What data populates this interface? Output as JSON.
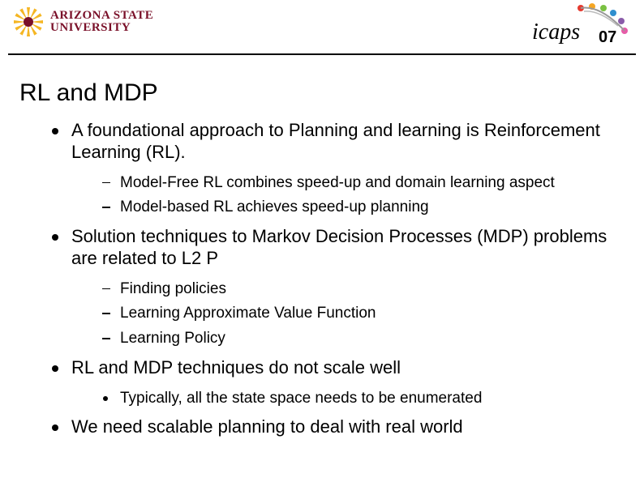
{
  "logos": {
    "asu": {
      "line1": "ARIZONA STATE",
      "line2": "UNIVERSITY",
      "text_color": "#7a1029",
      "sunburst_color": "#f5b623"
    },
    "icaps": {
      "text": "icaps07",
      "dot_colors": [
        "#e53a2f",
        "#f5a623",
        "#7ac142",
        "#2f8fce",
        "#8a5ca9",
        "#e75ba8"
      ]
    }
  },
  "title": "RL and MDP",
  "title_fontsize": 30,
  "body_fontsize": 22,
  "sub_fontsize": 19,
  "colors": {
    "background": "#ffffff",
    "text": "#000000",
    "rule": "#000000"
  },
  "bullets": [
    {
      "text": "A foundational approach to Planning and learning is Reinforcement Learning (RL).",
      "sub_style": "dash",
      "subs": [
        "Model-Free RL combines speed-up and domain learning aspect",
        "Model-based RL achieves speed-up planning"
      ]
    },
    {
      "text": "Solution techniques to Markov Decision Processes (MDP) problems are related to L2 P",
      "sub_style": "dash",
      "subs": [
        "Finding policies",
        "Learning Approximate Value Function",
        "Learning Policy"
      ]
    },
    {
      "text": "RL and MDP techniques do not scale well",
      "sub_style": "dot",
      "subs": [
        "Typically, all the state space needs to be enumerated"
      ]
    },
    {
      "text": "We need scalable planning to deal with real world",
      "sub_style": "dash",
      "subs": []
    }
  ]
}
